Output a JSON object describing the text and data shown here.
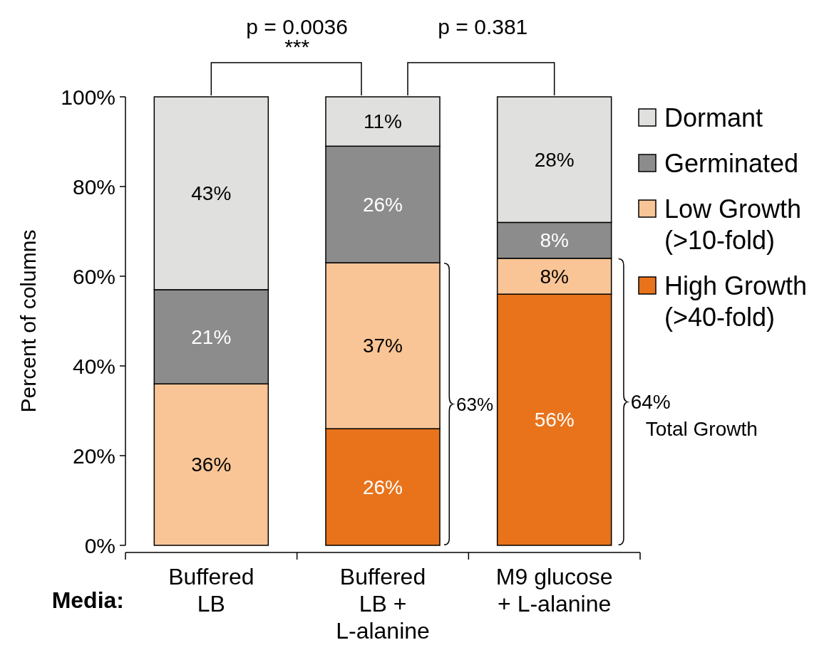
{
  "chart_data": {
    "type": "bar",
    "stacked": true,
    "ylabel": "Percent of columns",
    "categories": [
      "Buffered LB",
      "Buffered LB + L-alanine",
      "M9 glucose + L-alanine"
    ],
    "series": [
      {
        "name": "High Growth (>40-fold)",
        "color": "#e9731b",
        "values": [
          0,
          26,
          56
        ],
        "value_labels": [
          null,
          "26%",
          "56%"
        ]
      },
      {
        "name": "Low Growth (>10-fold)",
        "color": "#f9c596",
        "values": [
          36,
          37,
          8
        ],
        "value_labels": [
          "36%",
          "37%",
          "8%"
        ]
      },
      {
        "name": "Germinated",
        "color": "#8c8c8c",
        "values": [
          21,
          26,
          8
        ],
        "value_labels": [
          "21%",
          "26%",
          "8%"
        ]
      },
      {
        "name": "Dormant",
        "color": "#e0e0df",
        "values": [
          43,
          11,
          28
        ],
        "value_labels": [
          "43%",
          "11%",
          "28%"
        ]
      }
    ],
    "ylim": [
      0,
      100
    ],
    "yticks": [
      {
        "value": 0,
        "label": "0%"
      },
      {
        "value": 20,
        "label": "20%"
      },
      {
        "value": 40,
        "label": "40%"
      },
      {
        "value": 60,
        "label": "60%"
      },
      {
        "value": 80,
        "label": "80%"
      },
      {
        "value": 100,
        "label": "100%"
      }
    ],
    "legend": "right",
    "grid": false,
    "annotations": [
      "p = 0.0036",
      "***",
      "p = 0.381",
      "63%",
      "64%",
      "Total Growth",
      "Media:"
    ]
  }
}
